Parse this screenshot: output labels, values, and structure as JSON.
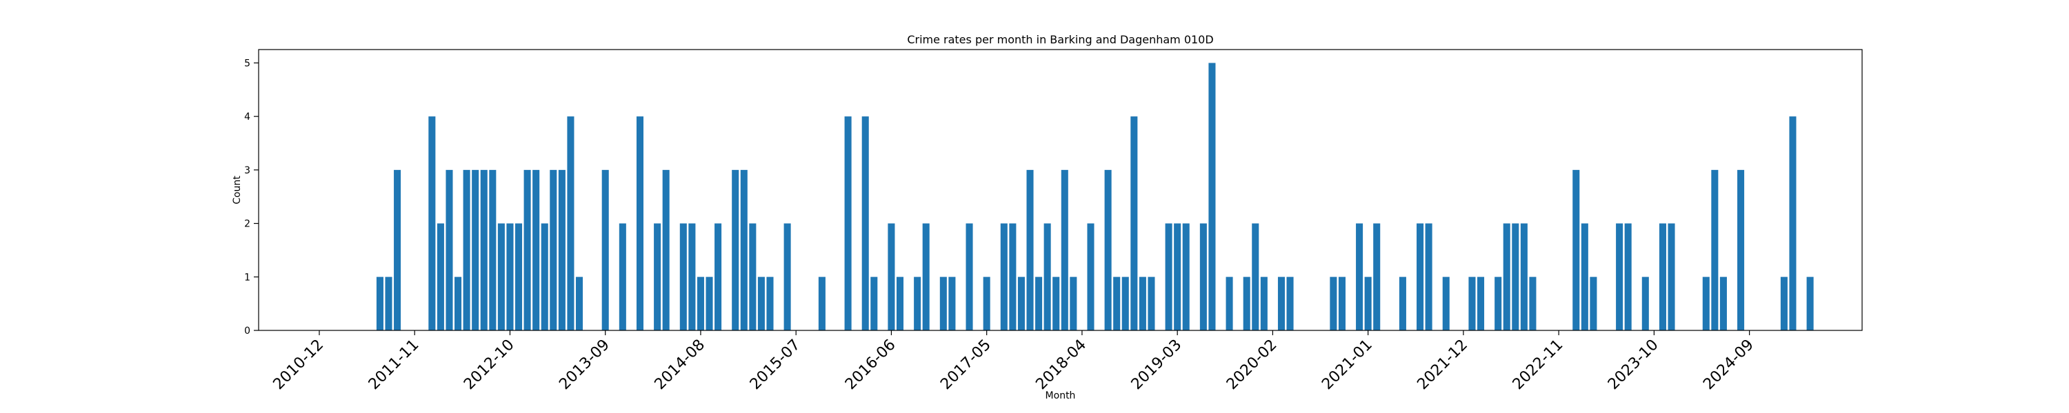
{
  "chart_data": {
    "type": "bar",
    "title": "Crime rates per month in Barking and Dagenham 010D",
    "xlabel": "Month",
    "ylabel": "Count",
    "ylim": [
      0,
      5.25
    ],
    "yticks": [
      0,
      1,
      2,
      3,
      4,
      5
    ],
    "xlim": [
      "2010-05",
      "2025-10"
    ],
    "xticks": [
      "2010-12",
      "2011-11",
      "2012-10",
      "2013-09",
      "2014-08",
      "2015-07",
      "2016-06",
      "2017-05",
      "2018-04",
      "2019-03",
      "2020-02",
      "2021-01",
      "2021-12",
      "2022-11",
      "2023-10",
      "2024-09"
    ],
    "grid": false,
    "bar_color": "#1f77b4",
    "categories": [
      "2011-07",
      "2011-08",
      "2011-09",
      "2012-01",
      "2012-02",
      "2012-03",
      "2012-04",
      "2012-05",
      "2012-06",
      "2012-07",
      "2012-08",
      "2012-09",
      "2012-10",
      "2012-11",
      "2012-12",
      "2013-01",
      "2013-02",
      "2013-03",
      "2013-04",
      "2013-05",
      "2013-06",
      "2013-09",
      "2013-11",
      "2014-01",
      "2014-03",
      "2014-04",
      "2014-06",
      "2014-07",
      "2014-08",
      "2014-09",
      "2014-10",
      "2014-12",
      "2015-01",
      "2015-02",
      "2015-03",
      "2015-04",
      "2015-06",
      "2015-10",
      "2016-01",
      "2016-03",
      "2016-04",
      "2016-06",
      "2016-07",
      "2016-09",
      "2016-10",
      "2016-12",
      "2017-01",
      "2017-03",
      "2017-05",
      "2017-07",
      "2017-08",
      "2017-09",
      "2017-10",
      "2017-11",
      "2017-12",
      "2018-01",
      "2018-02",
      "2018-03",
      "2018-05",
      "2018-07",
      "2018-08",
      "2018-09",
      "2018-10",
      "2018-11",
      "2018-12",
      "2019-02",
      "2019-03",
      "2019-04",
      "2019-06",
      "2019-07",
      "2019-09",
      "2019-11",
      "2019-12",
      "2020-01",
      "2020-03",
      "2020-04",
      "2020-09",
      "2020-10",
      "2020-12",
      "2021-01",
      "2021-02",
      "2021-05",
      "2021-07",
      "2021-08",
      "2021-10",
      "2022-01",
      "2022-02",
      "2022-04",
      "2022-05",
      "2022-06",
      "2022-07",
      "2022-08",
      "2023-01",
      "2023-02",
      "2023-03",
      "2023-06",
      "2023-07",
      "2023-09",
      "2023-11",
      "2023-12",
      "2024-04",
      "2024-05",
      "2024-06",
      "2024-08",
      "2025-01",
      "2025-02",
      "2025-04"
    ],
    "values": [
      1,
      1,
      3,
      4,
      2,
      3,
      1,
      3,
      3,
      3,
      3,
      2,
      2,
      2,
      3,
      3,
      2,
      3,
      3,
      4,
      1,
      3,
      2,
      4,
      2,
      3,
      2,
      2,
      1,
      1,
      2,
      3,
      3,
      2,
      1,
      1,
      2,
      1,
      4,
      4,
      1,
      2,
      1,
      1,
      2,
      1,
      1,
      2,
      1,
      2,
      2,
      1,
      3,
      1,
      2,
      1,
      3,
      1,
      2,
      3,
      1,
      1,
      4,
      1,
      1,
      2,
      2,
      2,
      2,
      5,
      1,
      1,
      2,
      1,
      1,
      1,
      1,
      1,
      2,
      1,
      2,
      1,
      2,
      2,
      1,
      1,
      1,
      1,
      2,
      2,
      2,
      1,
      3,
      2,
      1,
      2,
      2,
      1,
      2,
      2,
      1,
      3,
      1,
      3,
      1,
      4,
      1
    ]
  }
}
